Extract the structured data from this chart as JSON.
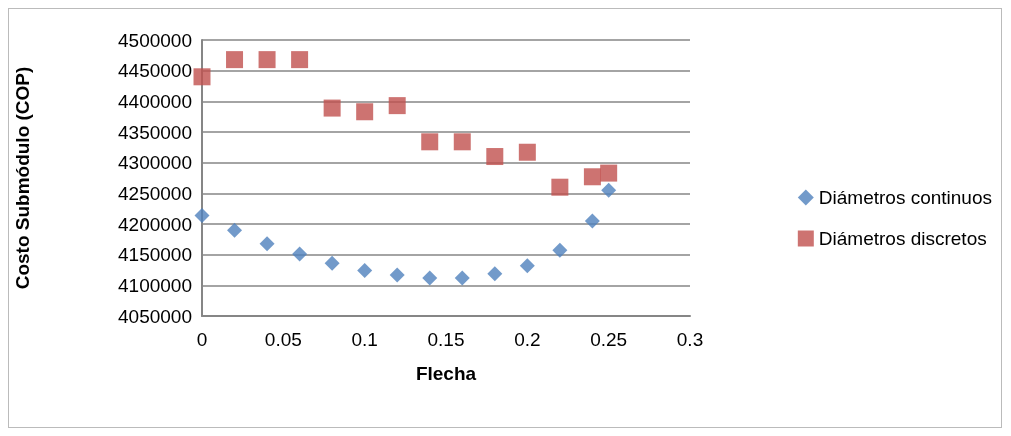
{
  "chart_data": {
    "type": "scatter",
    "xlabel": "Flecha",
    "ylabel": "Costo Submódulo (COP)",
    "x": [
      0,
      0.02,
      0.04,
      0.06,
      0.08,
      0.1,
      0.12,
      0.14,
      0.16,
      0.18,
      0.2,
      0.22,
      0.24,
      0.25
    ],
    "series": [
      {
        "name": "Diámetros continuos",
        "color": "#4f81bd",
        "marker": "diamond",
        "values": [
          4214000,
          4190000,
          4168000,
          4151000,
          4136000,
          4124000,
          4117000,
          4112000,
          4112000,
          4119000,
          4132000,
          4157000,
          4205000,
          4255000
        ]
      },
      {
        "name": "Diámetros discretos",
        "color": "#c0504d",
        "marker": "square",
        "values": [
          4440000,
          4468000,
          4468000,
          4468000,
          4389000,
          4383000,
          4393000,
          4334000,
          4334000,
          4310000,
          4317000,
          4260000,
          4277000,
          4283000
        ]
      }
    ],
    "xlim": [
      0,
      0.3
    ],
    "xticks": [
      0,
      0.05,
      0.1,
      0.15,
      0.2,
      0.25,
      0.3
    ],
    "ylim": [
      4050000,
      4500000
    ],
    "yticks": [
      4050000,
      4100000,
      4150000,
      4200000,
      4250000,
      4300000,
      4350000,
      4400000,
      4450000,
      4500000
    ],
    "grid": "y",
    "legend": "right"
  }
}
